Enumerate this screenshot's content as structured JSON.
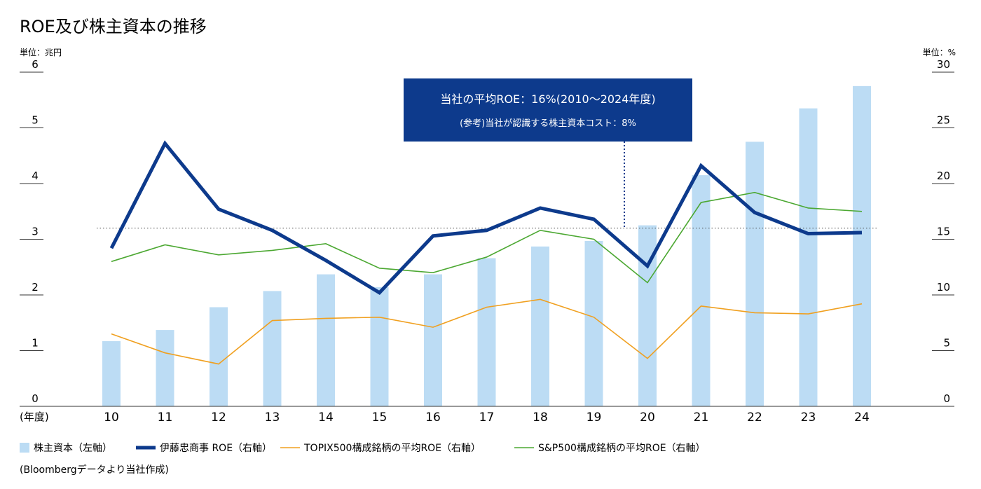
{
  "chart_data": {
    "title": "ROE及び株主資本の推移",
    "left_unit_label": "単位：兆円",
    "right_unit_label": "単位：%",
    "x_axis_prefix": "(年度)",
    "categories": [
      "10",
      "11",
      "12",
      "13",
      "14",
      "15",
      "16",
      "17",
      "18",
      "19",
      "20",
      "21",
      "22",
      "23",
      "24"
    ],
    "left_axis": {
      "min": 0,
      "max": 6,
      "ticks": [
        0,
        1,
        2,
        3,
        4,
        5,
        6
      ]
    },
    "right_axis": {
      "min": 0,
      "max": 30,
      "ticks": [
        0,
        5,
        10,
        15,
        20,
        25,
        30
      ]
    },
    "bar_series": {
      "name": "株主資本（左軸）",
      "type": "bar",
      "axis": "left",
      "color": "#bcdcf4",
      "values": [
        1.17,
        1.37,
        1.78,
        2.07,
        2.37,
        2.14,
        2.37,
        2.66,
        2.87,
        2.97,
        3.25,
        4.15,
        4.75,
        5.35,
        5.75
      ]
    },
    "line_series": [
      {
        "name": "伊藤忠商事 ROE（右軸）",
        "type": "line",
        "axis": "right",
        "color": "#0d3a8c",
        "values": [
          14.2,
          23.6,
          17.7,
          15.8,
          13.1,
          10.2,
          15.3,
          15.8,
          17.8,
          16.8,
          12.6,
          21.6,
          17.4,
          15.5,
          15.6
        ]
      },
      {
        "name": "TOPIX500構成銘柄の平均ROE（右軸）",
        "type": "line",
        "axis": "right",
        "color": "#f0a020",
        "values": [
          6.5,
          4.8,
          3.8,
          7.7,
          7.9,
          8.0,
          7.1,
          8.9,
          9.6,
          8.0,
          4.3,
          9.0,
          8.4,
          8.3,
          9.2
        ]
      },
      {
        "name": "S&P500構成銘柄の平均ROE（右軸）",
        "type": "line",
        "axis": "right",
        "color": "#4ca832",
        "values": [
          13.0,
          14.5,
          13.6,
          14.0,
          14.6,
          12.4,
          12.0,
          13.4,
          15.8,
          15.0,
          11.1,
          18.3,
          19.2,
          17.8,
          17.5
        ]
      }
    ],
    "reference_line": {
      "axis": "right",
      "value": 16.0,
      "style": "dotted"
    },
    "annotation": {
      "line1": "当社の平均ROE：16%(2010〜2024年度)",
      "line2": "(参考)当社が認識する株主資本コスト：8%",
      "background_color": "#0d3a8c"
    },
    "legend_placement": "bottom",
    "grid": false
  },
  "source_note": "(Bloombergデータより当社作成)"
}
